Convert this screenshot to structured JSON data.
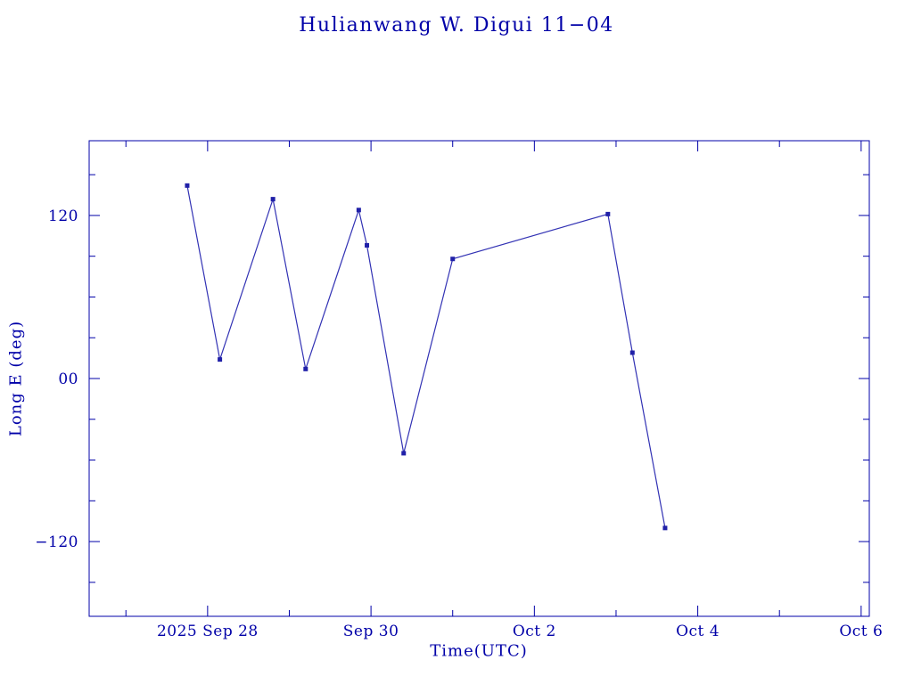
{
  "title": "Hulianwang W. Digui 11−04",
  "colors": {
    "ink": "#0000a8",
    "line": "#3232b4",
    "marker": "#2020a8",
    "background": "#ffffff"
  },
  "chart_data": {
    "type": "line",
    "title": "Hulianwang W. Digui 11−04",
    "xlabel": "Time(UTC)",
    "ylabel": "Long E (deg)",
    "x_axis_unit": "days, 0 = 2025 Sep 26 00:00 UTC",
    "xlim": [
      0.55,
      10.1
    ],
    "ylim": [
      -175,
      175
    ],
    "grid": false,
    "x_ticks": [
      {
        "value": 2,
        "label": "2025 Sep 28"
      },
      {
        "value": 4,
        "label": "Sep 30"
      },
      {
        "value": 6,
        "label": "Oct 2"
      },
      {
        "value": 8,
        "label": "Oct 4"
      },
      {
        "value": 10,
        "label": "Oct 6"
      }
    ],
    "x_minor_step": 1,
    "y_ticks": [
      {
        "value": 120,
        "label": "120"
      },
      {
        "value": 0,
        "label": "00"
      },
      {
        "value": -120,
        "label": "−120"
      }
    ],
    "y_minor_step": 30,
    "series": [
      {
        "name": "Long E (deg)",
        "marker": "square",
        "points": [
          {
            "x": 1.75,
            "y": 142
          },
          {
            "x": 2.15,
            "y": 14
          },
          {
            "x": 2.8,
            "y": 132
          },
          {
            "x": 3.2,
            "y": 7
          },
          {
            "x": 3.85,
            "y": 124
          },
          {
            "x": 3.95,
            "y": 98
          },
          {
            "x": 4.4,
            "y": -55
          },
          {
            "x": 5.0,
            "y": 88
          },
          {
            "x": 6.9,
            "y": 121
          },
          {
            "x": 7.2,
            "y": 19
          },
          {
            "x": 7.6,
            "y": -110
          }
        ]
      }
    ]
  }
}
